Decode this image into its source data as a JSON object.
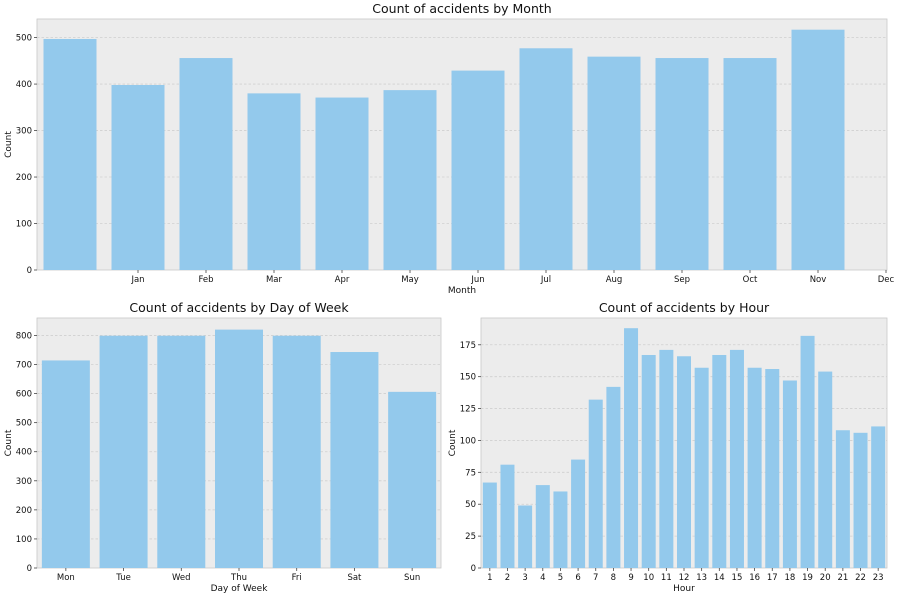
{
  "colors": {
    "bar": "#93c9ec",
    "plot_background": "#ececec",
    "grid": "#cfcfcf"
  },
  "chart_data": [
    {
      "id": "month",
      "type": "bar",
      "title": "Count of accidents by Month",
      "xlabel": "Month",
      "ylabel": "Count",
      "tick_labels": [
        "",
        "Jan",
        "Feb",
        "Mar",
        "Apr",
        "May",
        "Jun",
        "Jul",
        "Aug",
        "Sep",
        "Oct",
        "Nov",
        "Dec"
      ],
      "values": [
        497,
        398,
        456,
        380,
        371,
        387,
        429,
        477,
        459,
        456,
        456,
        517,
        null
      ],
      "ylim": [
        0,
        540
      ],
      "yticks": [
        0,
        100,
        200,
        300,
        400,
        500
      ],
      "grid": true
    },
    {
      "id": "dow",
      "type": "bar",
      "title": "Count of accidents by Day of Week",
      "xlabel": "Day of Week",
      "ylabel": "Count",
      "categories": [
        "Mon",
        "Tue",
        "Wed",
        "Thu",
        "Fri",
        "Sat",
        "Sun"
      ],
      "values": [
        714,
        799,
        799,
        820,
        799,
        743,
        606
      ],
      "ylim": [
        0,
        860
      ],
      "yticks": [
        0,
        100,
        200,
        300,
        400,
        500,
        600,
        700,
        800
      ],
      "grid": true
    },
    {
      "id": "hour",
      "type": "bar",
      "title": "Count of accidents by Hour",
      "xlabel": "Hour",
      "ylabel": "Count",
      "categories": [
        "1",
        "2",
        "3",
        "4",
        "5",
        "6",
        "7",
        "8",
        "9",
        "10",
        "11",
        "12",
        "13",
        "14",
        "15",
        "16",
        "17",
        "18",
        "19",
        "20",
        "21",
        "22",
        "23"
      ],
      "values": [
        67,
        81,
        49,
        65,
        60,
        85,
        132,
        142,
        188,
        167,
        171,
        166,
        157,
        167,
        171,
        157,
        156,
        147,
        182,
        154,
        108,
        106,
        111
      ],
      "ylim": [
        0,
        196
      ],
      "yticks": [
        0,
        25,
        50,
        75,
        100,
        125,
        150,
        175
      ],
      "grid": true
    }
  ]
}
